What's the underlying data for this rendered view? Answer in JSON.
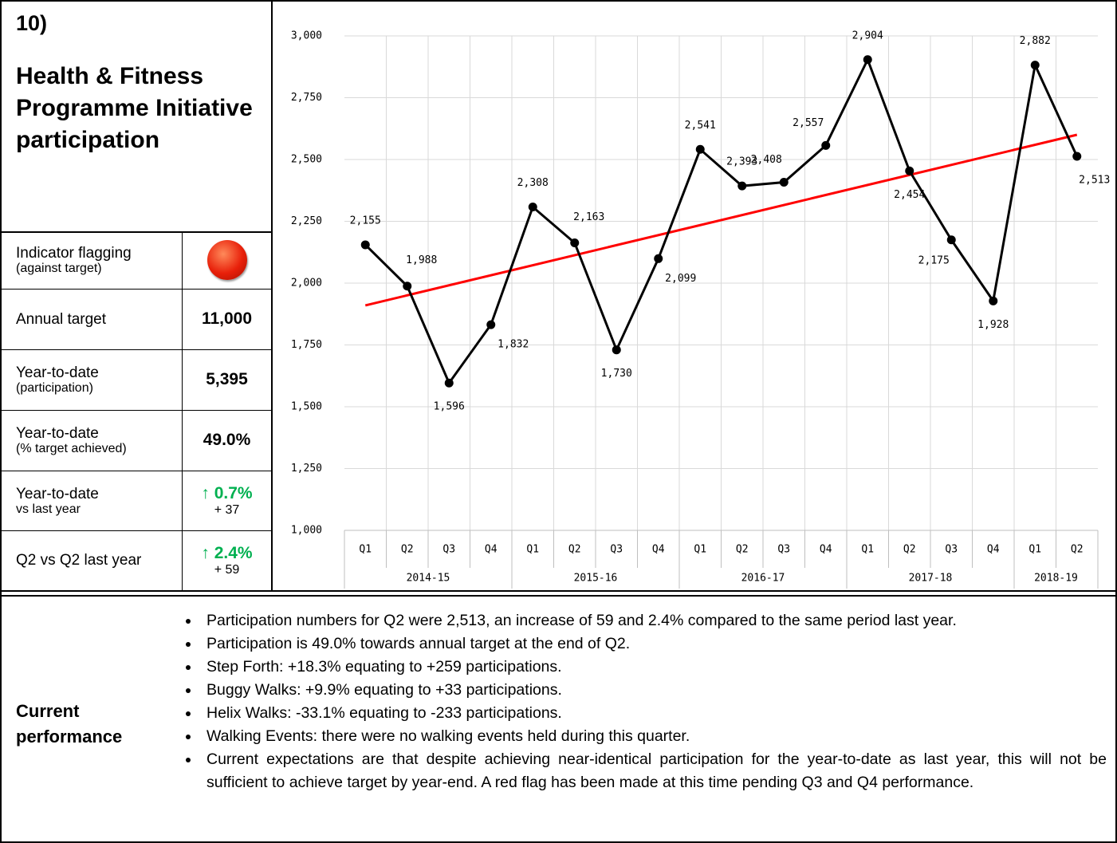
{
  "header": {
    "number": "10)",
    "title": "Health & Fitness Programme Initiative participation"
  },
  "indicators": [
    {
      "label": "Indicator flagging",
      "sublabel": "(against target)"
    },
    {
      "label": "Annual target",
      "value": "11,000"
    },
    {
      "label": "Year-to-date",
      "sublabel": "(participation)",
      "value": "5,395"
    },
    {
      "label": "Year-to-date",
      "sublabel": "(% target achieved)",
      "value": "49.0%"
    },
    {
      "label": "Year-to-date",
      "sublabel": "vs last year",
      "value": "↑ 0.7%",
      "change": "+ 37"
    },
    {
      "label": "Q2 vs Q2 last year",
      "value": "↑ 2.4%",
      "change": "+ 59"
    }
  ],
  "performance": {
    "heading": "Current performance",
    "bullets": [
      "Participation numbers for Q2 were 2,513, an increase of 59 and 2.4% compared to the same period last year.",
      "Participation is 49.0% towards annual target at the end of Q2.",
      "Step Forth: +18.3% equating to +259 participations.",
      "Buggy Walks: +9.9% equating to +33 participations.",
      "Helix Walks: -33.1% equating to -233 participations.",
      "Walking Events: there were no walking events held during this quarter.",
      "Current expectations are that despite achieving near-identical participation for the year-to-date as last year, this will not be sufficient to achieve target by year-end. A red flag has been made at this time pending Q3 and Q4 performance."
    ]
  },
  "chart_data": {
    "type": "line",
    "color": "#000000",
    "categories": [
      "Q1",
      "Q2",
      "Q3",
      "Q4",
      "Q1",
      "Q2",
      "Q3",
      "Q4",
      "Q1",
      "Q2",
      "Q3",
      "Q4",
      "Q1",
      "Q2",
      "Q3",
      "Q4",
      "Q1",
      "Q2"
    ],
    "groups": [
      {
        "name": "2014-15",
        "span": 4
      },
      {
        "name": "2015-16",
        "span": 4
      },
      {
        "name": "2016-17",
        "span": 4
      },
      {
        "name": "2017-18",
        "span": 4
      },
      {
        "name": "2018-19",
        "span": 2
      }
    ],
    "values": [
      2155,
      1988,
      1596,
      1832,
      2308,
      2163,
      1730,
      2099,
      2541,
      2393,
      2408,
      2557,
      2904,
      2454,
      2175,
      1928,
      2882,
      2513
    ],
    "value_labels": [
      "2,155",
      "1,988",
      "1,596",
      "1,832",
      "2,308",
      "2,163",
      "1,730",
      "2,099",
      "2,541",
      "2,393",
      "2,408",
      "2,557",
      "2,904",
      "2,454",
      "2,175",
      "1,928",
      "2,882",
      "2,513"
    ],
    "trend": {
      "color": "#ff0000",
      "start": 1910,
      "end": 2600
    },
    "ylim": [
      1000,
      3000
    ],
    "yticks": [
      {
        "value": 1000,
        "label": "1,000"
      },
      {
        "value": 1250,
        "label": "1,250"
      },
      {
        "value": 1500,
        "label": "1,500"
      },
      {
        "value": 1750,
        "label": "1,750"
      },
      {
        "value": 2000,
        "label": "2,000"
      },
      {
        "value": 2250,
        "label": "2,250"
      },
      {
        "value": 2500,
        "label": "2,500"
      },
      {
        "value": 2750,
        "label": "2,750"
      },
      {
        "value": 3000,
        "label": "3,000"
      }
    ],
    "grid": true
  }
}
